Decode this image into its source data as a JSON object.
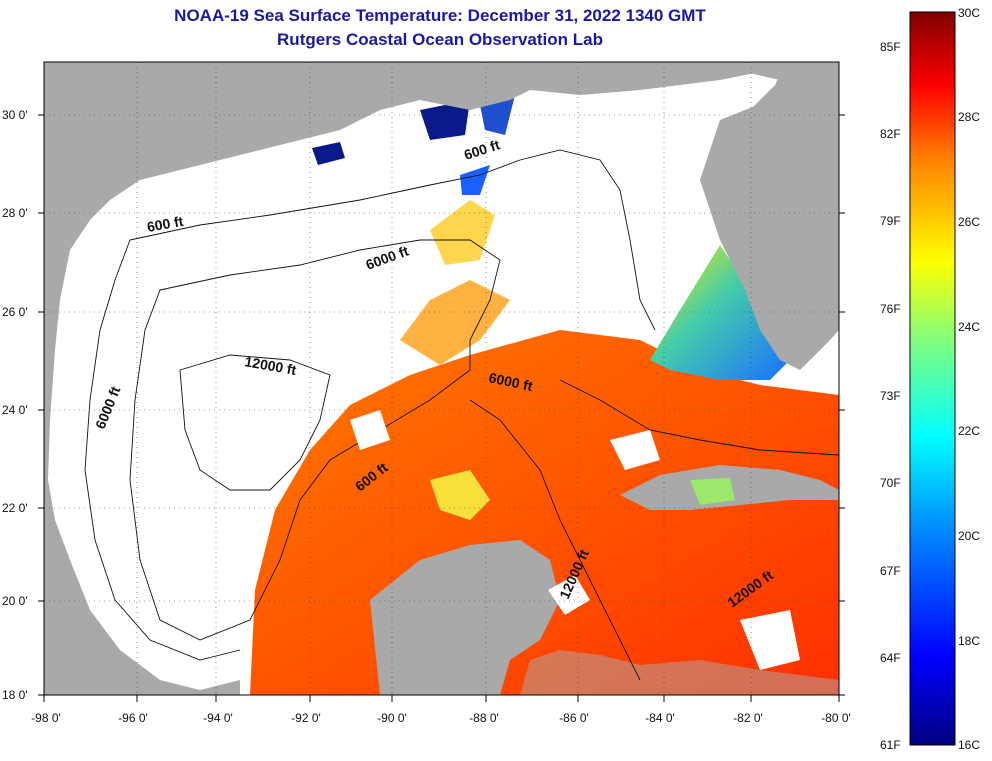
{
  "title": "NOAA-19 Sea Surface Temperature:  December 31, 2022 1340 GMT",
  "subtitle": "Rutgers Coastal Ocean Observation Lab",
  "map": {
    "lat_labels": [
      "30 0'",
      "28 0'",
      "26 0'",
      "24 0'",
      "22 0'",
      "20 0'",
      "18 0'"
    ],
    "lon_labels": [
      "-98 0'",
      "-96 0'",
      "-94 0'",
      "-92 0'",
      "-90 0'",
      "-88 0'",
      "-86 0'",
      "-84 0'",
      "-82 0'",
      "-80 0'"
    ],
    "contour_labels": {
      "c600_west": "600 ft",
      "c600_ne": "600 ft",
      "c600_south": "600 ft",
      "c6000_north": "6000 ft",
      "c6000_west": "6000 ft",
      "c6000_east": "6000 ft",
      "c12000_central": "12000 ft",
      "c12000_yuc": "12000 ft",
      "c12000_carib": "12000 ft"
    },
    "colors": {
      "land": "#a9a9a9",
      "cloud": "#ffffff",
      "warm": "#ff3a00",
      "orange": "#ff8c00",
      "cool": "#ffd700",
      "cold": "#1e90ff",
      "very_cold": "#000080"
    }
  },
  "colorbar": {
    "fahrenheit": [
      "85F",
      "82F",
      "79F",
      "76F",
      "73F",
      "70F",
      "67F",
      "64F",
      "61F"
    ],
    "celsius": [
      "30C",
      "28C",
      "26C",
      "24C",
      "22C",
      "20C",
      "18C",
      "16C"
    ],
    "range_c": [
      16,
      30
    ]
  }
}
